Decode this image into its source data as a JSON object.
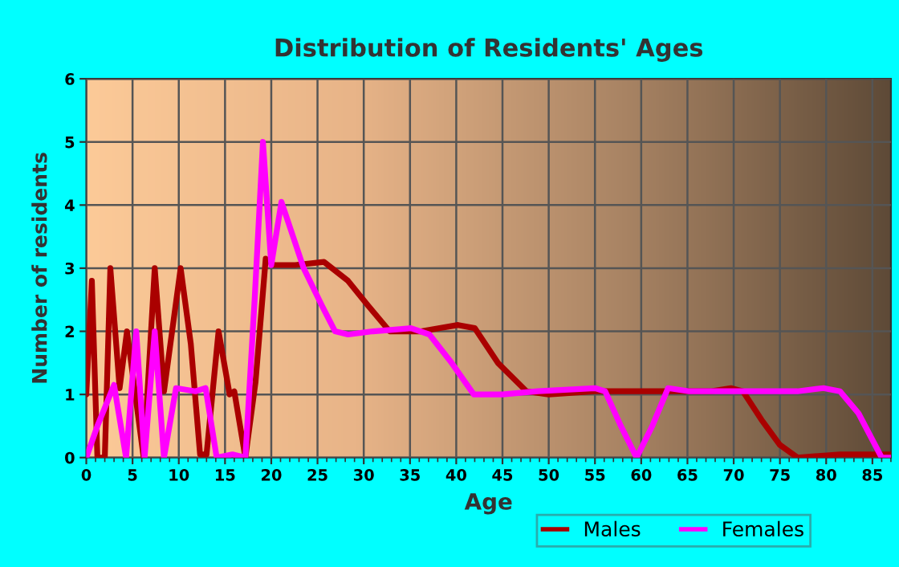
{
  "chart_data": {
    "type": "line",
    "title": "Distribution of Residents' Ages",
    "xlabel": "Age",
    "ylabel": "Number of residents",
    "xlim": [
      0,
      87
    ],
    "xticks": [
      0,
      5,
      10,
      15,
      20,
      25,
      30,
      35,
      40,
      45,
      50,
      55,
      60,
      65,
      70,
      75,
      80,
      85
    ],
    "ylim": [
      0,
      6
    ],
    "yticks": [
      0,
      1,
      2,
      3,
      4,
      5,
      6
    ],
    "grid": true,
    "legend": "bottom",
    "line_style": "solid",
    "marker": "none",
    "series": [
      {
        "name": "Males",
        "color": "#aa0000",
        "x": [
          0,
          0.6,
          1.2,
          2,
          2.6,
          3.6,
          4.4,
          5.3,
          6.2,
          7.4,
          8.4,
          10.2,
          11.3,
          12.3,
          13,
          14.3,
          15.5,
          16,
          17.2,
          18.3,
          19.4,
          20.3,
          22.6,
          25.7,
          28.3,
          30.5,
          32.8,
          36.2,
          40.2,
          42,
          44.5,
          47.6,
          50,
          55,
          67.5,
          69.7,
          71,
          73,
          75,
          76.9,
          81.5,
          87
        ],
        "values": [
          1,
          2.8,
          0,
          0,
          3,
          1.1,
          2,
          1,
          0,
          3,
          1.05,
          3,
          1.8,
          0.05,
          0.05,
          2,
          1,
          1.05,
          0,
          1.2,
          3.15,
          3.05,
          3.05,
          3.1,
          2.8,
          2.4,
          2,
          2,
          2.1,
          2.05,
          1.5,
          1.05,
          1,
          1.05,
          1.05,
          1.1,
          1.05,
          0.6,
          0.2,
          0,
          0.05,
          0.05
        ]
      },
      {
        "name": "Females",
        "color": "#ff00ff",
        "x": [
          0,
          1.2,
          3,
          4.3,
          5.4,
          6.3,
          7.4,
          8.4,
          9.7,
          11.8,
          12.9,
          14.1,
          15.8,
          17.2,
          18.2,
          19.1,
          20,
          21.1,
          23.5,
          25.5,
          26.9,
          28.3,
          31,
          35.1,
          37.1,
          39.5,
          41.9,
          45,
          48.8,
          55,
          56.1,
          57.8,
          59.5,
          61.2,
          62.9,
          65.2,
          76.9,
          79.7,
          81.5,
          83.5,
          86,
          87
        ],
        "values": [
          0,
          0.5,
          1.15,
          0,
          2,
          0,
          2,
          0,
          1.1,
          1.05,
          1.1,
          0,
          0.05,
          0,
          2.5,
          5,
          3.05,
          4.05,
          3,
          2.4,
          2,
          1.95,
          2,
          2.05,
          1.95,
          1.5,
          1,
          1,
          1.05,
          1.1,
          1.05,
          0.5,
          0,
          0.5,
          1.1,
          1.05,
          1.05,
          1.1,
          1.05,
          0.7,
          0,
          0
        ]
      }
    ]
  }
}
